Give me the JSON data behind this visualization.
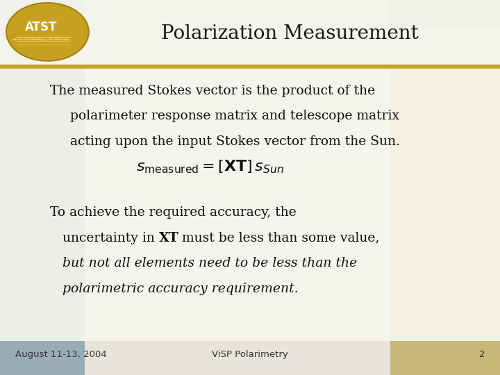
{
  "title": "Polarization Measurement",
  "title_fontsize": 20,
  "title_color": "#1a1a1a",
  "bg_color": "#d8d0c0",
  "slide_bg": "#ffffff",
  "header_line_color": "#c8a020",
  "logo_ellipse_color": "#c8a020",
  "body_text1_line1": "The measured Stokes vector is the product of the",
  "body_text1_line2": "polarimeter response matrix and telescope matrix",
  "body_text1_line3": "acting upon the input Stokes vector from the Sun.",
  "body_text1_fontsize": 13.5,
  "equation": "$s_{measured} = [\\mathbf{XT}]s_{Sun}$",
  "equation_fontsize": 16,
  "body_text2_line1": "To achieve the required accuracy, the",
  "body_text2_line2a": "   uncertainty in ",
  "body_text2_line2b": "XT",
  "body_text2_line2c": " must be less than some value,",
  "body_text2_line3": "   but not all elements need to be less than the",
  "body_text2_line4": "   polarimetric accuracy requirement.",
  "body_text2_fontsize": 13.5,
  "footer_date": "August 11-13, 2004",
  "footer_center": "ViSP Polarimetry",
  "footer_page": "2",
  "footer_fontsize": 9.5,
  "footer_color": "#333333",
  "text_color": "#111111"
}
